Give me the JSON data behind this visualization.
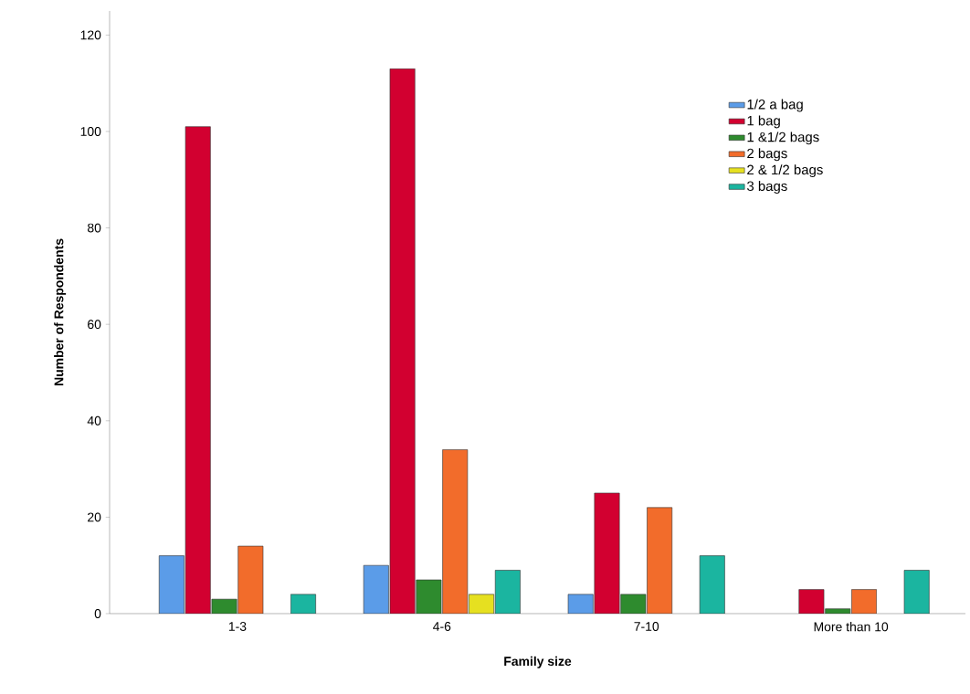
{
  "chart_data": {
    "type": "bar",
    "xlabel": "Family size",
    "ylabel": "Number of Respondents",
    "categories": [
      "1-3",
      "4-6",
      "7-10",
      "More than 10"
    ],
    "series": [
      {
        "name": "1/2 a bag",
        "color": "#5b9ce8",
        "values": [
          12,
          10,
          4,
          null
        ]
      },
      {
        "name": "1 bag",
        "color": "#d20030",
        "values": [
          101,
          113,
          25,
          5
        ]
      },
      {
        "name": "1 &1/2 bags",
        "color": "#2e8b2e",
        "values": [
          3,
          7,
          4,
          1
        ]
      },
      {
        "name": "2 bags",
        "color": "#f26c2b",
        "values": [
          14,
          34,
          22,
          5
        ]
      },
      {
        "name": "2 & 1/2 bags",
        "color": "#e6e020",
        "values": [
          null,
          4,
          null,
          null
        ]
      },
      {
        "name": "3 bags",
        "color": "#1bb5a0",
        "values": [
          4,
          9,
          12,
          9
        ]
      }
    ],
    "ylim": [
      0,
      125
    ],
    "yticks": [
      0,
      20,
      40,
      60,
      80,
      100,
      120
    ],
    "grid": false,
    "legend": "top right"
  }
}
